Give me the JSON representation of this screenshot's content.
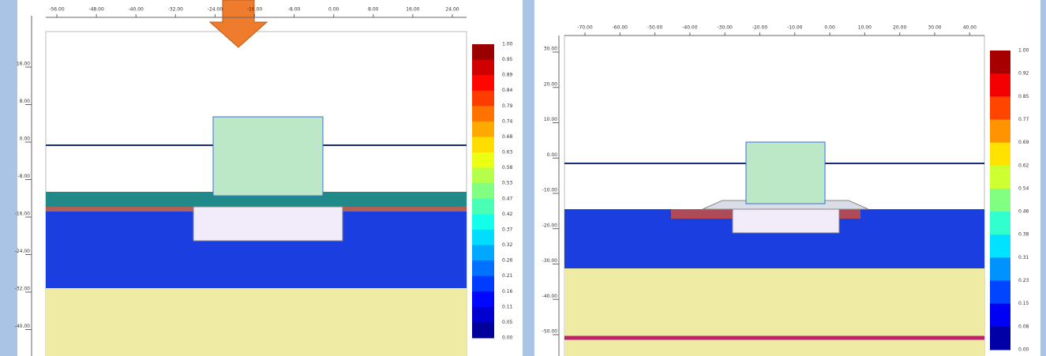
{
  "left_plot": {
    "x_axis_labels": [
      "-56.00",
      "-48.00",
      "-40.00",
      "-32.00",
      "-24.00",
      "-16.00",
      "-8.00",
      "0.00",
      "8.00",
      "16.00",
      "24.00"
    ],
    "y_axis_labels": [
      "16.00",
      "8.00",
      "0.00",
      "-8.00",
      "-16.00",
      "-24.00",
      "-32.00",
      "-40.00"
    ],
    "legend_labels": [
      "1.00",
      "0.95",
      "0.89",
      "0.84",
      "0.79",
      "0.74",
      "0.68",
      "0.63",
      "0.58",
      "0.53",
      "0.47",
      "0.42",
      "0.37",
      "0.32",
      "0.26",
      "0.21",
      "0.16",
      "0.11",
      "0.05",
      "0.00"
    ]
  },
  "right_plot": {
    "x_axis_labels": [
      "-70.00",
      "-60.00",
      "-50.00",
      "-40.00",
      "-30.00",
      "-20.00",
      "-10.00",
      "0.00",
      "10.00",
      "20.00",
      "30.00",
      "40.00"
    ],
    "y_axis_labels": [
      "30.00",
      "20.00",
      "10.00",
      "0.00",
      "-10.00",
      "-20.00",
      "-30.00",
      "-40.00",
      "-50.00"
    ],
    "legend_labels": [
      "1.00",
      "0.92",
      "0.85",
      "0.77",
      "0.69",
      "0.62",
      "0.54",
      "0.46",
      "0.38",
      "0.31",
      "0.23",
      "0.15",
      "0.08",
      "0.00"
    ]
  }
}
